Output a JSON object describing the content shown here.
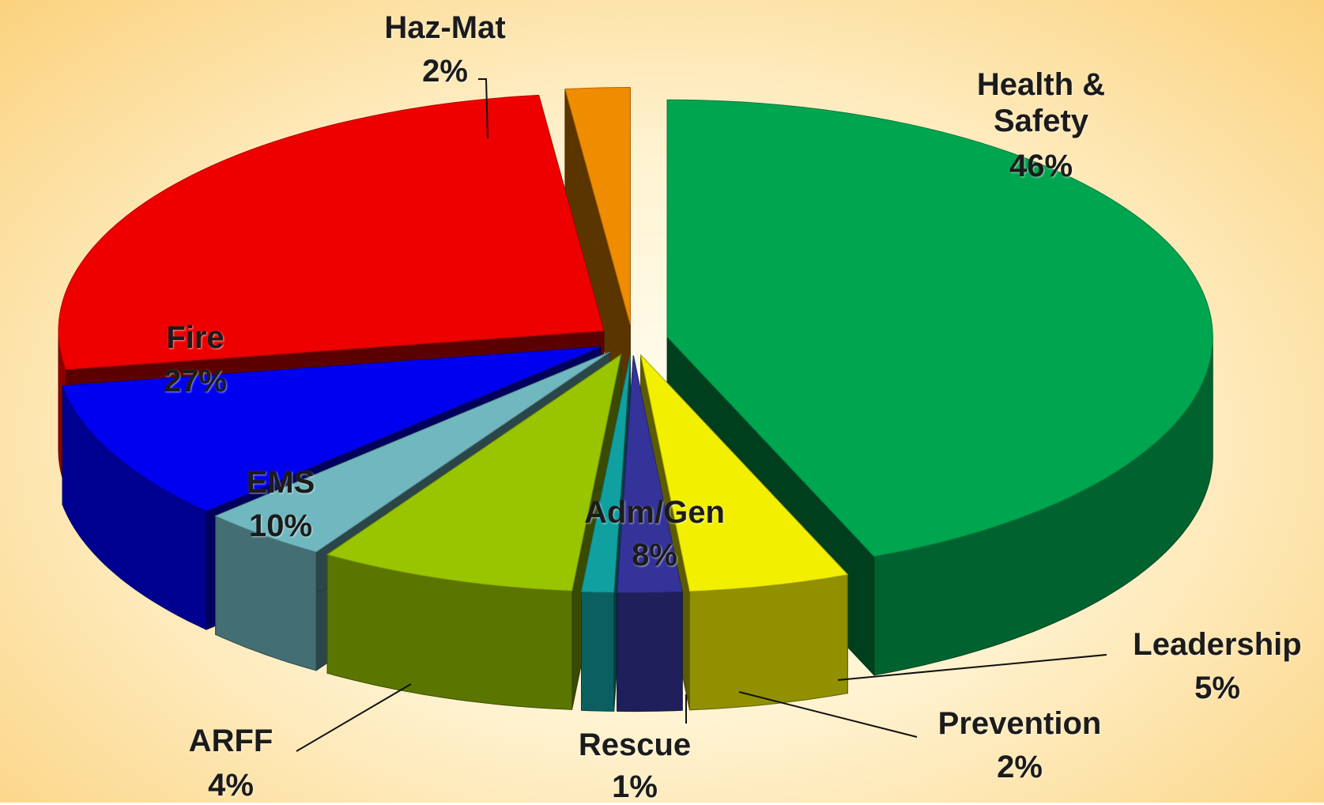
{
  "chart_data": {
    "type": "pie3d",
    "categories": [
      "Health & Safety",
      "Leadership",
      "Prevention",
      "Rescue",
      "Adm/Gen",
      "ARFF",
      "EMS",
      "Fire",
      "Haz-Mat"
    ],
    "values": [
      46,
      5,
      2,
      1,
      8,
      4,
      10,
      27,
      2
    ],
    "value_labels": [
      "46%",
      "5%",
      "2%",
      "1%",
      "8%",
      "4%",
      "10%",
      "27%",
      "2%"
    ],
    "colors": [
      "#00a54f",
      "#f2f000",
      "#333399",
      "#11a0a0",
      "#98c400",
      "#70b7bf",
      "#0000f0",
      "#ee0000",
      "#f08c00"
    ]
  }
}
